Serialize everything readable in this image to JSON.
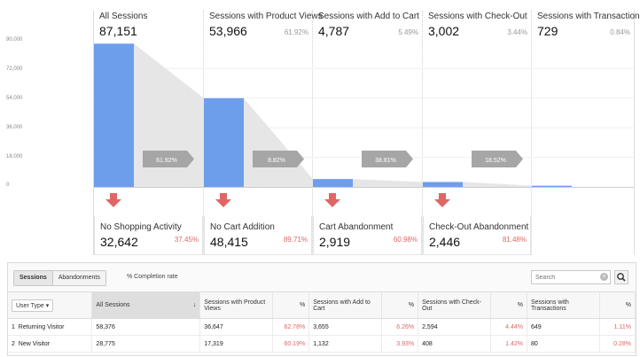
{
  "stages": [
    {
      "label": "All Sessions",
      "value": "87,151",
      "pct": ""
    },
    {
      "label": "Sessions with Product Views",
      "value": "53,966",
      "pct": "61.92%"
    },
    {
      "label": "Sessions with Add to Cart",
      "value": "4,787",
      "pct": "5.49%"
    },
    {
      "label": "Sessions with Check-Out",
      "value": "3,002",
      "pct": "3.44%"
    },
    {
      "label": "Sessions with Transactions",
      "value": "729",
      "pct": "0.84%"
    }
  ],
  "chart_data": {
    "type": "bar",
    "categories": [
      "All Sessions",
      "Sessions with Product Views",
      "Sessions with Add to Cart",
      "Sessions with Check-Out",
      "Sessions with Transactions"
    ],
    "values": [
      87151,
      53966,
      4787,
      3002,
      729
    ],
    "yticks": [
      "90,000",
      "72,000",
      "54,000",
      "36,000",
      "18,000",
      "0"
    ],
    "ylim": [
      0,
      90000
    ],
    "conversion_labels": [
      "61.92%",
      "8.82%",
      "38.81%",
      "18.52%"
    ],
    "colors": {
      "bar": "#6d9eeb",
      "arrow": "#a6a6a6",
      "drop_arrow": "#e06666",
      "flow": "#e6e6e6"
    }
  },
  "dropoffs": [
    {
      "label": "No Shopping Activity",
      "value": "32,642",
      "pct": "37.45%"
    },
    {
      "label": "No Cart Addition",
      "value": "48,415",
      "pct": "89.71%"
    },
    {
      "label": "Cart Abandonment",
      "value": "2,919",
      "pct": "60.98%"
    },
    {
      "label": "Check-Out Abandonment",
      "value": "2,446",
      "pct": "81.48%"
    }
  ],
  "toolbar": {
    "tab_sessions": "Sessions",
    "tab_abandonments": "Abandonments",
    "completion": "% Completion rate",
    "search_placeholder": "Search"
  },
  "table": {
    "dimension": "User Type",
    "columns": [
      "All Sessions",
      "Sessions with Product Views",
      "%",
      "Sessions with Add to Cart",
      "%",
      "Sessions with Check-Out",
      "%",
      "Sessions with Transactions",
      "%"
    ],
    "rows": [
      {
        "idx": "1",
        "type": "Returning Visitor",
        "cells": [
          "58,376",
          "36,647",
          "62.78%",
          "3,655",
          "6.26%",
          "2,594",
          "4.44%",
          "649",
          "1.11%"
        ]
      },
      {
        "idx": "2",
        "type": "New Visitor",
        "cells": [
          "28,775",
          "17,319",
          "60.19%",
          "1,132",
          "3.93%",
          "408",
          "1.42%",
          "80",
          "0.28%"
        ]
      }
    ]
  }
}
